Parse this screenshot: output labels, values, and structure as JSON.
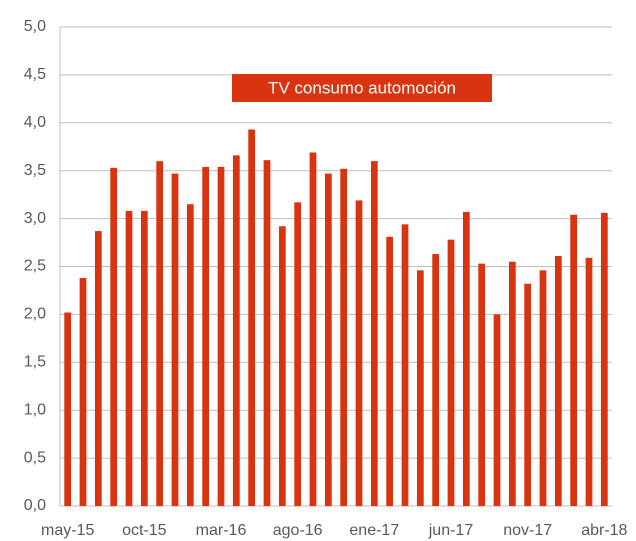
{
  "chart_data": {
    "type": "bar",
    "title": "TV consumo automoción",
    "categories": [
      "may-15",
      null,
      null,
      null,
      null,
      "oct-15",
      null,
      null,
      null,
      null,
      "mar-16",
      null,
      null,
      null,
      null,
      "ago-16",
      null,
      null,
      null,
      null,
      "ene-17",
      null,
      null,
      null,
      null,
      "jun-17",
      null,
      null,
      null,
      null,
      "nov-17",
      null,
      null,
      null,
      null,
      "abr-18"
    ],
    "values": [
      2.02,
      2.38,
      2.87,
      3.53,
      3.08,
      3.08,
      3.6,
      3.47,
      3.15,
      3.54,
      3.54,
      3.66,
      3.93,
      3.61,
      2.92,
      3.17,
      3.69,
      3.47,
      3.52,
      3.19,
      3.6,
      2.81,
      2.94,
      2.46,
      2.63,
      2.78,
      3.07,
      2.53,
      2.0,
      2.55,
      2.32,
      2.46,
      2.61,
      3.04,
      2.59,
      3.06
    ],
    "color": "#d9340f",
    "ylim": [
      0,
      5
    ],
    "yticks": [
      {
        "value": 0,
        "label": "0,0"
      },
      {
        "value": 0.5,
        "label": "0,5"
      },
      {
        "value": 1,
        "label": "1,0"
      },
      {
        "value": 1.5,
        "label": "1,5"
      },
      {
        "value": 2,
        "label": "2,0"
      },
      {
        "value": 2.5,
        "label": "2,5"
      },
      {
        "value": 3,
        "label": "3,0"
      },
      {
        "value": 3.5,
        "label": "3,5"
      },
      {
        "value": 4,
        "label": "4,0"
      },
      {
        "value": 4.5,
        "label": "4,5"
      },
      {
        "value": 5,
        "label": "5,0"
      }
    ],
    "grid": true
  }
}
